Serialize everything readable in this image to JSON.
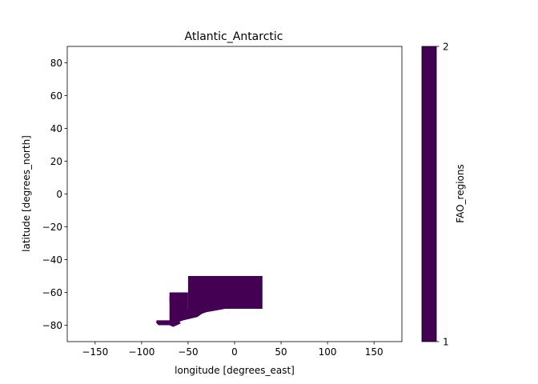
{
  "chart_data": {
    "type": "heatmap",
    "title": "Atlantic_Antarctic",
    "xlabel": "longitude [degrees_east]",
    "ylabel": "latitude [degrees_north]",
    "xlim": [
      -180,
      180
    ],
    "ylim": [
      -90,
      90
    ],
    "xticks": [
      -150,
      -100,
      -50,
      0,
      50,
      100,
      150
    ],
    "yticks": [
      -80,
      -60,
      -40,
      -20,
      0,
      20,
      40,
      60,
      80
    ],
    "grid": false,
    "colorbar": {
      "label": "FAO_regions",
      "min": 1,
      "max": 2,
      "ticks": [
        1,
        2
      ],
      "color": "#440154"
    },
    "region_color": "#440154",
    "region_polygons": [
      [
        [
          -50,
          -50
        ],
        [
          30,
          -50
        ],
        [
          30,
          -70
        ],
        [
          -50,
          -70
        ]
      ],
      [
        [
          -70,
          -60
        ],
        [
          -50,
          -60
        ],
        [
          -50,
          -70
        ],
        [
          -70,
          -70
        ]
      ],
      [
        [
          -70,
          -62
        ],
        [
          -60,
          -62
        ],
        [
          -60,
          -66
        ],
        [
          -70,
          -66
        ]
      ],
      [
        [
          -50,
          -70
        ],
        [
          -10,
          -70
        ],
        [
          -20,
          -71
        ],
        [
          -30,
          -72
        ],
        [
          -35,
          -73
        ],
        [
          -40,
          -75
        ],
        [
          -55,
          -77
        ],
        [
          -60,
          -78
        ],
        [
          -64,
          -78
        ],
        [
          -70,
          -77
        ],
        [
          -70,
          -70
        ]
      ],
      [
        [
          -84,
          -77
        ],
        [
          -60,
          -77
        ],
        [
          -58,
          -79
        ],
        [
          -62,
          -80
        ],
        [
          -66,
          -81
        ],
        [
          -70,
          -80
        ],
        [
          -75,
          -80
        ],
        [
          -80,
          -79
        ],
        [
          -84,
          -78
        ]
      ],
      [
        [
          -85,
          -78
        ],
        [
          -75,
          -78
        ],
        [
          -74,
          -80
        ],
        [
          -82,
          -80
        ]
      ]
    ]
  }
}
